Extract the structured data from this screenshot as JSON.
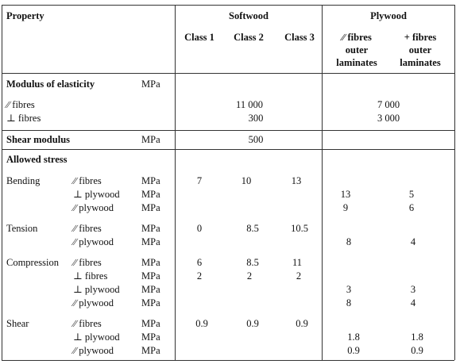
{
  "header": {
    "property": "Property",
    "softwood": "Softwood",
    "plywood": "Plywood",
    "class1": "Class 1",
    "class2": "Class 2",
    "class3": "Class 3",
    "ply_par": [
      "∕∕ fibres",
      "outer",
      "laminates"
    ],
    "ply_perp": [
      "+ fibres",
      "outer",
      "laminates"
    ]
  },
  "modulus": {
    "title": "Modulus of elasticity",
    "unit": "MPa",
    "rows": [
      {
        "label": "∕∕ fibres",
        "softwood": "11 000",
        "plywood": "7 000"
      },
      {
        "label": "⊥ fibres",
        "softwood": "300",
        "plywood": "3 000"
      }
    ]
  },
  "shear_modulus": {
    "title": "Shear modulus",
    "unit": "MPa",
    "softwood": "500"
  },
  "allowed": {
    "title": "Allowed stress",
    "groups": [
      {
        "name": "Bending",
        "rows": [
          {
            "sub": "∕∕ fibres",
            "unit": "MPa",
            "c1": "7",
            "c2": "10",
            "c3": "13",
            "p1": "",
            "p2": ""
          },
          {
            "sub": "⊥ plywood",
            "unit": "MPa",
            "c1": "",
            "c2": "",
            "c3": "",
            "p1": "13",
            "p2": "5"
          },
          {
            "sub": "∕∕ plywood",
            "unit": "MPa",
            "c1": "",
            "c2": "",
            "c3": "",
            "p1": "9",
            "p2": "6"
          }
        ]
      },
      {
        "name": "Tension",
        "rows": [
          {
            "sub": "∕∕ fibres",
            "unit": "MPa",
            "c1": "0",
            "c2": "8.5",
            "c3": "10.5",
            "p1": "",
            "p2": ""
          },
          {
            "sub": "∕∕ plywood",
            "unit": "MPa",
            "c1": "",
            "c2": "",
            "c3": "",
            "p1": "8",
            "p2": "4"
          }
        ]
      },
      {
        "name": "Compression",
        "rows": [
          {
            "sub": "∕∕ fibres",
            "unit": "MPa",
            "c1": "6",
            "c2": "8.5",
            "c3": "11",
            "p1": "",
            "p2": ""
          },
          {
            "sub": "⊥ fibres",
            "unit": "MPa",
            "c1": "2",
            "c2": "2",
            "c3": "2",
            "p1": "",
            "p2": ""
          },
          {
            "sub": "⊥ plywood",
            "unit": "MPa",
            "c1": "",
            "c2": "",
            "c3": "",
            "p1": "3",
            "p2": "3"
          },
          {
            "sub": "∕∕ plywood",
            "unit": "MPa",
            "c1": "",
            "c2": "",
            "c3": "",
            "p1": "8",
            "p2": "4"
          }
        ]
      },
      {
        "name": "Shear",
        "rows": [
          {
            "sub": "∕∕ fibres",
            "unit": "MPa",
            "c1": "0.9",
            "c2": "0.9",
            "c3": "0.9",
            "p1": "",
            "p2": ""
          },
          {
            "sub": "⊥ plywood",
            "unit": "MPa",
            "c1": "",
            "c2": "",
            "c3": "",
            "p1": "1.8",
            "p2": "1.8"
          },
          {
            "sub": "∕∕ plywood",
            "unit": "MPa",
            "c1": "",
            "c2": "",
            "c3": "",
            "p1": "0.9",
            "p2": "0.9"
          }
        ]
      }
    ]
  }
}
